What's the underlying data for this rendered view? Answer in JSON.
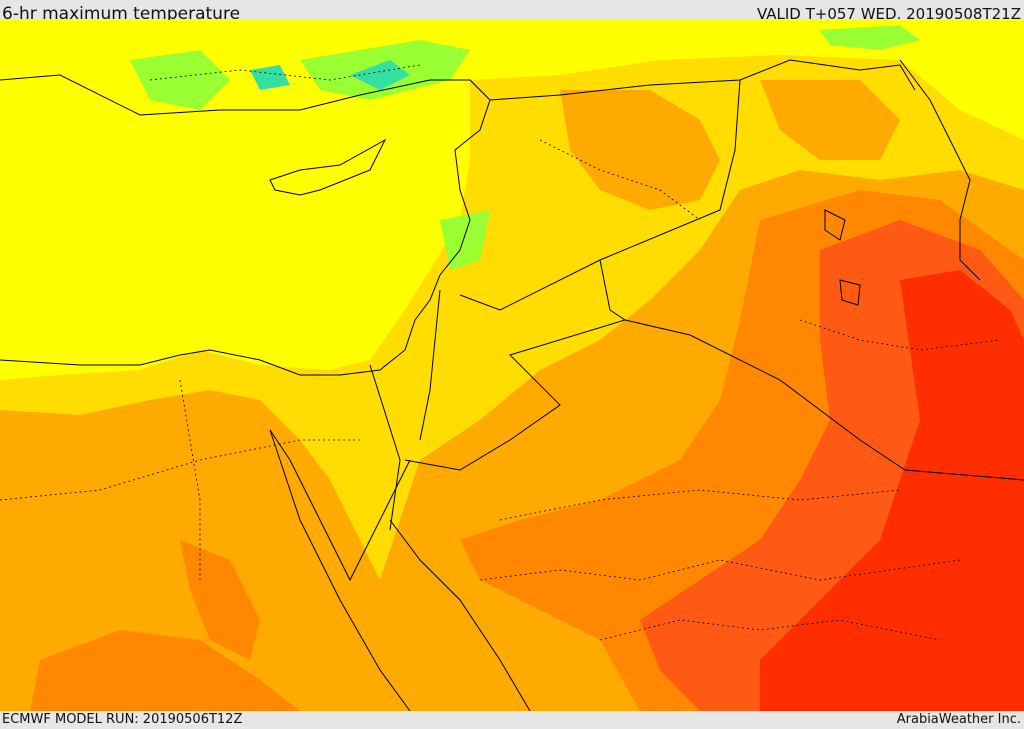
{
  "header": {
    "title": "6-hr maximum temperature",
    "valid": "VALID T+057 WED. 20190508T21Z"
  },
  "footer": {
    "model_run": "ECMWF MODEL RUN: 20190506T12Z",
    "credit": "ArabiaWeather Inc."
  },
  "map": {
    "palette": {
      "sea_land_yellow": "#ffff00",
      "light_orange": "#ffdd00",
      "orange": "#ffaa00",
      "dark_orange": "#ff8800",
      "red_orange": "#ff5a14",
      "red": "#ff2e00",
      "green": "#66ff33",
      "cyan": "#33e0a0",
      "boundary": "#000000"
    }
  }
}
